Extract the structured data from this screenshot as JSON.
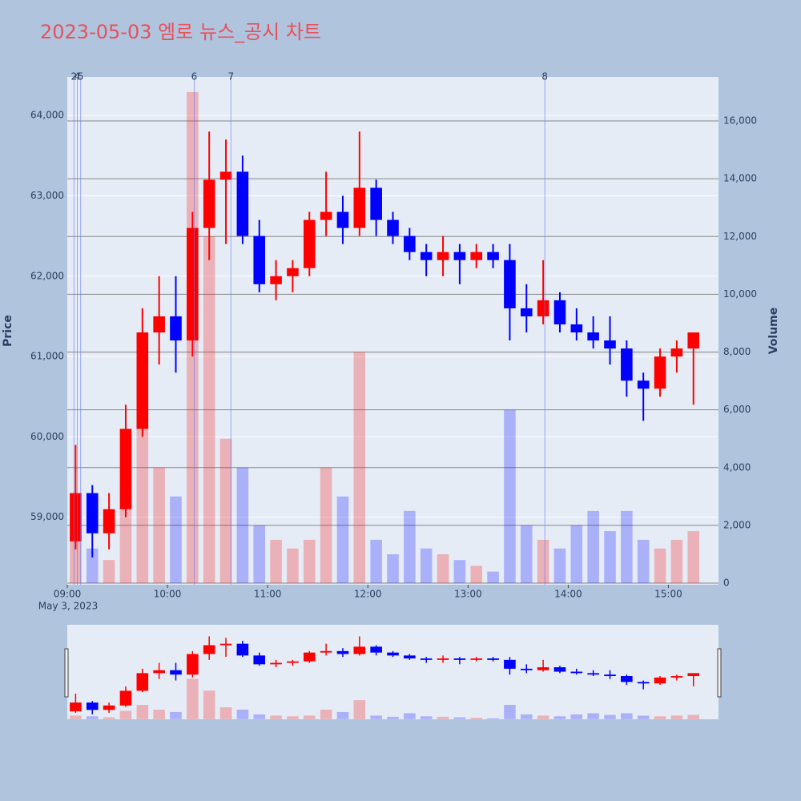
{
  "chart_data": {
    "type": "candlestick",
    "title": "2023-05-03 엠로 뉴스_공시 차트",
    "x_date_label": "May 3, 2023",
    "y_label": "Price",
    "y2_label": "Volume",
    "up_color": "#ff0000",
    "down_color": "#0000ff",
    "x": [
      "09:05",
      "09:15",
      "09:25",
      "09:35",
      "09:45",
      "09:55",
      "10:05",
      "10:15",
      "10:25",
      "10:35",
      "10:45",
      "10:55",
      "11:05",
      "11:15",
      "11:25",
      "11:35",
      "11:45",
      "11:55",
      "12:05",
      "12:15",
      "12:25",
      "12:35",
      "12:45",
      "12:55",
      "13:05",
      "13:15",
      "13:25",
      "13:35",
      "13:45",
      "13:55",
      "14:05",
      "14:15",
      "14:25",
      "14:35",
      "14:45",
      "14:55",
      "15:05",
      "15:15"
    ],
    "open": [
      58700,
      59300,
      58800,
      59100,
      60100,
      61300,
      61500,
      61200,
      62600,
      63200,
      63300,
      62500,
      61900,
      62000,
      62100,
      62700,
      62800,
      62600,
      63100,
      62700,
      62500,
      62300,
      62200,
      62300,
      62200,
      62300,
      62200,
      61600,
      61500,
      61700,
      61400,
      61300,
      61200,
      61100,
      60700,
      60600,
      61000,
      61100
    ],
    "high": [
      59900,
      59400,
      59300,
      60400,
      61600,
      62000,
      62000,
      62800,
      63800,
      63700,
      63500,
      62700,
      62200,
      62200,
      62800,
      63300,
      63000,
      63800,
      63200,
      62800,
      62600,
      62400,
      62500,
      62400,
      62400,
      62400,
      62400,
      61900,
      62200,
      61800,
      61600,
      61500,
      61500,
      61200,
      60800,
      61100,
      61200,
      61300
    ],
    "low": [
      58600,
      58500,
      58600,
      59000,
      60000,
      60900,
      60800,
      61000,
      62200,
      62400,
      62400,
      61800,
      61700,
      61800,
      62000,
      62500,
      62400,
      62500,
      62500,
      62400,
      62200,
      62000,
      62000,
      61900,
      62100,
      62100,
      61200,
      61300,
      61400,
      61300,
      61200,
      61100,
      60900,
      60500,
      60200,
      60500,
      60800,
      60400
    ],
    "close": [
      59300,
      58800,
      59100,
      60100,
      61300,
      61500,
      61200,
      62600,
      63200,
      63300,
      62500,
      61900,
      62000,
      62100,
      62700,
      62800,
      62600,
      63100,
      62700,
      62500,
      62300,
      62200,
      62300,
      62200,
      62300,
      62200,
      61600,
      61500,
      61700,
      61400,
      61300,
      61200,
      61100,
      60700,
      60600,
      61000,
      61100,
      61300
    ],
    "volume": [
      1500,
      1200,
      800,
      3500,
      6000,
      4000,
      3000,
      17000,
      12000,
      5000,
      4000,
      2000,
      1500,
      1200,
      1500,
      4000,
      3000,
      8000,
      1500,
      1000,
      2500,
      1200,
      1000,
      800,
      600,
      400,
      6000,
      2000,
      1500,
      1200,
      2000,
      2500,
      1800,
      2500,
      1500,
      1200,
      1500,
      1800
    ],
    "xlim": [
      "09:00",
      "15:30"
    ],
    "xticks": [
      "09:00",
      "10:00",
      "11:00",
      "12:00",
      "13:00",
      "14:00",
      "15:00"
    ],
    "ylim": [
      58160,
      64480
    ],
    "yticks": [
      {
        "value": 59000,
        "label": "59,000"
      },
      {
        "value": 60000,
        "label": "60,000"
      },
      {
        "value": 61000,
        "label": "61,000"
      },
      {
        "value": 62000,
        "label": "62,000"
      },
      {
        "value": 63000,
        "label": "63,000"
      },
      {
        "value": 64000,
        "label": "64,000"
      }
    ],
    "y2lim": [
      -55,
      17525
    ],
    "y2ticks": [
      0,
      {
        "value": 2000,
        "label": "2,000"
      },
      {
        "value": 4000,
        "label": "4,000"
      },
      {
        "value": 6000,
        "label": "6,000"
      },
      {
        "value": 8000,
        "label": "8,000"
      },
      {
        "value": 10000,
        "label": "10,000"
      },
      {
        "value": 12000,
        "label": "12,000"
      },
      {
        "value": 14000,
        "label": "14,000"
      },
      {
        "value": 16000,
        "label": "16,000"
      }
    ],
    "annotations": [
      {
        "x": "09:04",
        "label": "2"
      },
      {
        "x": "09:06",
        "label": "4"
      },
      {
        "x": "09:08",
        "label": "5"
      },
      {
        "x": "10:16",
        "label": "6"
      },
      {
        "x": "10:38",
        "label": "7"
      },
      {
        "x": "13:46",
        "label": "8"
      }
    ]
  }
}
